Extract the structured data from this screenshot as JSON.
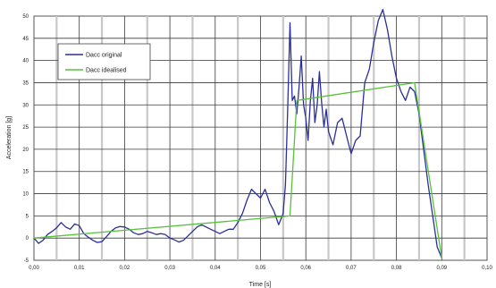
{
  "chart_data": {
    "type": "line",
    "title": "",
    "xlabel": "Time [s]",
    "ylabel": "Acceleration [g]",
    "xlim": [
      0.0,
      0.1
    ],
    "ylim": [
      -5,
      50
    ],
    "x_ticks": [
      "0,00",
      "0,01",
      "0,02",
      "0,03",
      "0,04",
      "0,05",
      "0,06",
      "0,07",
      "0,08",
      "0,09",
      "0,10"
    ],
    "y_ticks": [
      "-5",
      "0",
      "5",
      "10",
      "15",
      "20",
      "25",
      "30",
      "35",
      "40",
      "45",
      "50"
    ],
    "grid": true,
    "legend_position": "top-left",
    "series": [
      {
        "name": "Dacc original",
        "color": "#2b2f9c",
        "x": [
          0.0,
          0.001,
          0.002,
          0.003,
          0.004,
          0.005,
          0.006,
          0.007,
          0.008,
          0.009,
          0.01,
          0.011,
          0.012,
          0.013,
          0.014,
          0.015,
          0.016,
          0.017,
          0.018,
          0.019,
          0.02,
          0.021,
          0.022,
          0.023,
          0.024,
          0.025,
          0.026,
          0.027,
          0.028,
          0.029,
          0.03,
          0.031,
          0.032,
          0.033,
          0.034,
          0.035,
          0.036,
          0.037,
          0.038,
          0.039,
          0.04,
          0.041,
          0.042,
          0.043,
          0.044,
          0.045,
          0.046,
          0.047,
          0.048,
          0.049,
          0.05,
          0.051,
          0.052,
          0.053,
          0.054,
          0.055,
          0.0555,
          0.056,
          0.0565,
          0.057,
          0.0575,
          0.058,
          0.0585,
          0.059,
          0.0595,
          0.06,
          0.0605,
          0.061,
          0.0615,
          0.062,
          0.0625,
          0.063,
          0.0635,
          0.064,
          0.0645,
          0.065,
          0.066,
          0.067,
          0.068,
          0.069,
          0.07,
          0.071,
          0.072,
          0.073,
          0.074,
          0.075,
          0.076,
          0.077,
          0.078,
          0.079,
          0.08,
          0.081,
          0.082,
          0.083,
          0.084,
          0.085,
          0.086,
          0.087,
          0.088,
          0.089,
          0.09
        ],
        "y": [
          0.0,
          -1.2,
          -0.5,
          0.8,
          1.5,
          2.3,
          3.5,
          2.5,
          2.0,
          3.2,
          2.8,
          1.0,
          0.2,
          -0.5,
          -1.0,
          -0.8,
          0.3,
          1.5,
          2.3,
          2.6,
          2.5,
          2.0,
          1.2,
          0.8,
          1.0,
          1.5,
          1.2,
          0.8,
          1.0,
          0.8,
          0.0,
          -0.4,
          -0.9,
          -0.5,
          0.5,
          1.5,
          2.5,
          3.0,
          2.5,
          2.0,
          1.5,
          1.0,
          1.5,
          2.0,
          2.0,
          3.5,
          5.5,
          8.5,
          11.0,
          10.0,
          9.0,
          11.0,
          8.0,
          6.0,
          3.0,
          5.5,
          12.0,
          29.0,
          48.5,
          31.0,
          32.0,
          28.0,
          34.0,
          41.0,
          30.0,
          27.0,
          22.0,
          31.0,
          36.0,
          26.0,
          30.0,
          37.5,
          30.5,
          25.0,
          29.0,
          24.0,
          21.0,
          26.0,
          27.0,
          23.0,
          19.0,
          22.0,
          23.0,
          35.0,
          38.0,
          44.0,
          49.0,
          51.5,
          47.0,
          41.0,
          36.0,
          33.0,
          31.0,
          34.0,
          33.0,
          28.0,
          20.0,
          12.0,
          5.0,
          -2.0,
          -4.5
        ]
      },
      {
        "name": "Dacc idealised",
        "color": "#56c23a",
        "x": [
          0.0,
          0.0565,
          0.058,
          0.084,
          0.09
        ],
        "y": [
          0.0,
          5.0,
          31.0,
          35.0,
          -4.5
        ]
      }
    ]
  }
}
